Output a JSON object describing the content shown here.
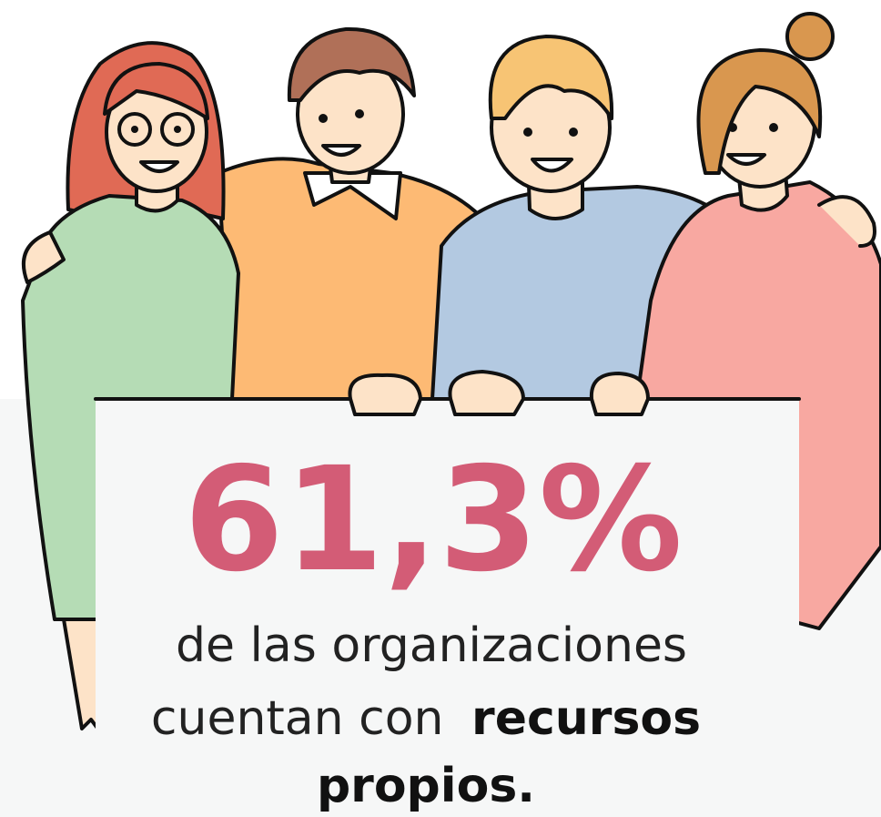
{
  "headline": "61,3%",
  "caption": {
    "lines": [
      "de  las organizaciones",
      "cuentan con"
    ],
    "emphasis": [
      "recursos",
      "propios."
    ]
  }
}
